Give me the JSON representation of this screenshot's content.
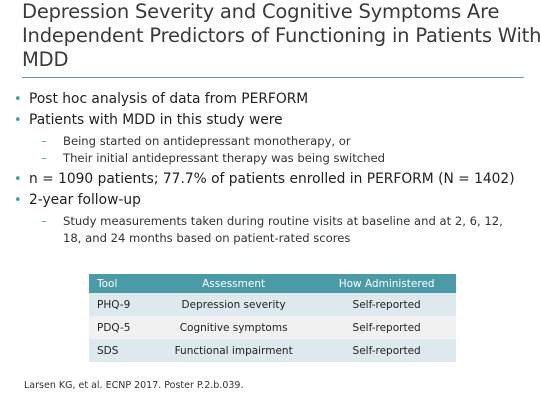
{
  "title_lines": [
    "Depression Severity and Cognitive Symptoms Are",
    "Independent Predictors of Functioning in Patients With",
    "MDD"
  ],
  "bullets": [
    {
      "text": "Post hoc analysis of data from PERFORM",
      "sub": []
    },
    {
      "text": "Patients with MDD in this study were",
      "sub": [
        "Being started on antidepressant monotherapy, or",
        "Their initial antidepressant therapy was being switched"
      ]
    },
    {
      "text": "n = 1090 patients; 77.7% of patients enrolled in PERFORM (N = 1402)",
      "sub": []
    },
    {
      "text": "2-year follow-up",
      "sub": [
        "Study measurements taken during routine visits at baseline and at 2, 6, 12, 18, and 24 months based on patient-rated scores"
      ]
    }
  ],
  "table": {
    "headers": [
      "Tool",
      "Assessment",
      "How Administered"
    ],
    "rows": [
      [
        "PHQ-9",
        "Depression severity",
        "Self-reported"
      ],
      [
        "PDQ-5",
        "Cognitive symptoms",
        "Self-reported"
      ],
      [
        "SDS",
        "Functional impairment",
        "Self-reported"
      ]
    ]
  },
  "footnote": "Larsen KG, et al. ECNP 2017. Poster P.2.b.039.",
  "colors": {
    "accent": "#3aa0a8",
    "table_header": "#4a9aa7",
    "row_tint": "#dde9ed"
  }
}
